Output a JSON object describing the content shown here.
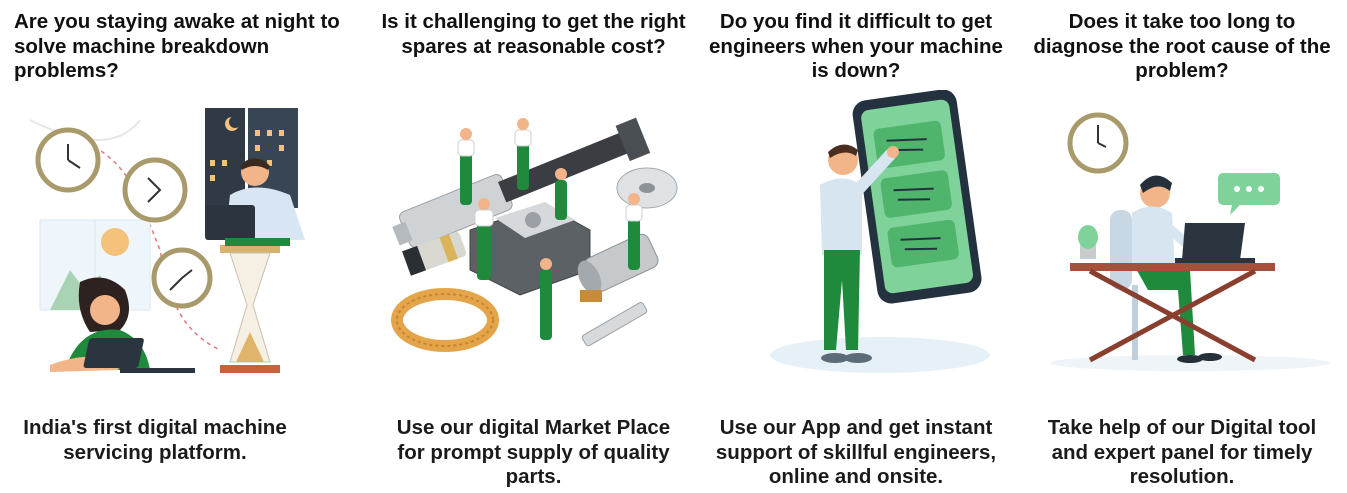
{
  "colors": {
    "green": "#1f8a3b",
    "light_green": "#7fd39a",
    "skin": "#f2b58a",
    "dark": "#243341",
    "gold": "#c8a26a"
  },
  "cards": [
    {
      "question": "Are you staying awake at night to\nsolve machine breakdown problems?",
      "answer": "India's first digital machine\nservicing platform.",
      "illustration": "night-work-illustration"
    },
    {
      "question": "Is it challenging to get the right\nspares at reasonable cost?",
      "answer": "Use our digital Market Place\nfor prompt supply of quality\nparts.",
      "illustration": "spare-parts-illustration"
    },
    {
      "question": "Do you find it difficult to get\nengineers when your machine\nis down?",
      "answer": "Use our App and get instant\nsupport of skillful engineers,\nonline and onsite.",
      "illustration": "mobile-app-illustration"
    },
    {
      "question": "Does it take too long to\ndiagnose the root cause of the\nproblem?",
      "answer": "Take help of our Digital tool\nand expert panel for timely\nresolution.",
      "illustration": "diagnosis-illustration"
    }
  ]
}
